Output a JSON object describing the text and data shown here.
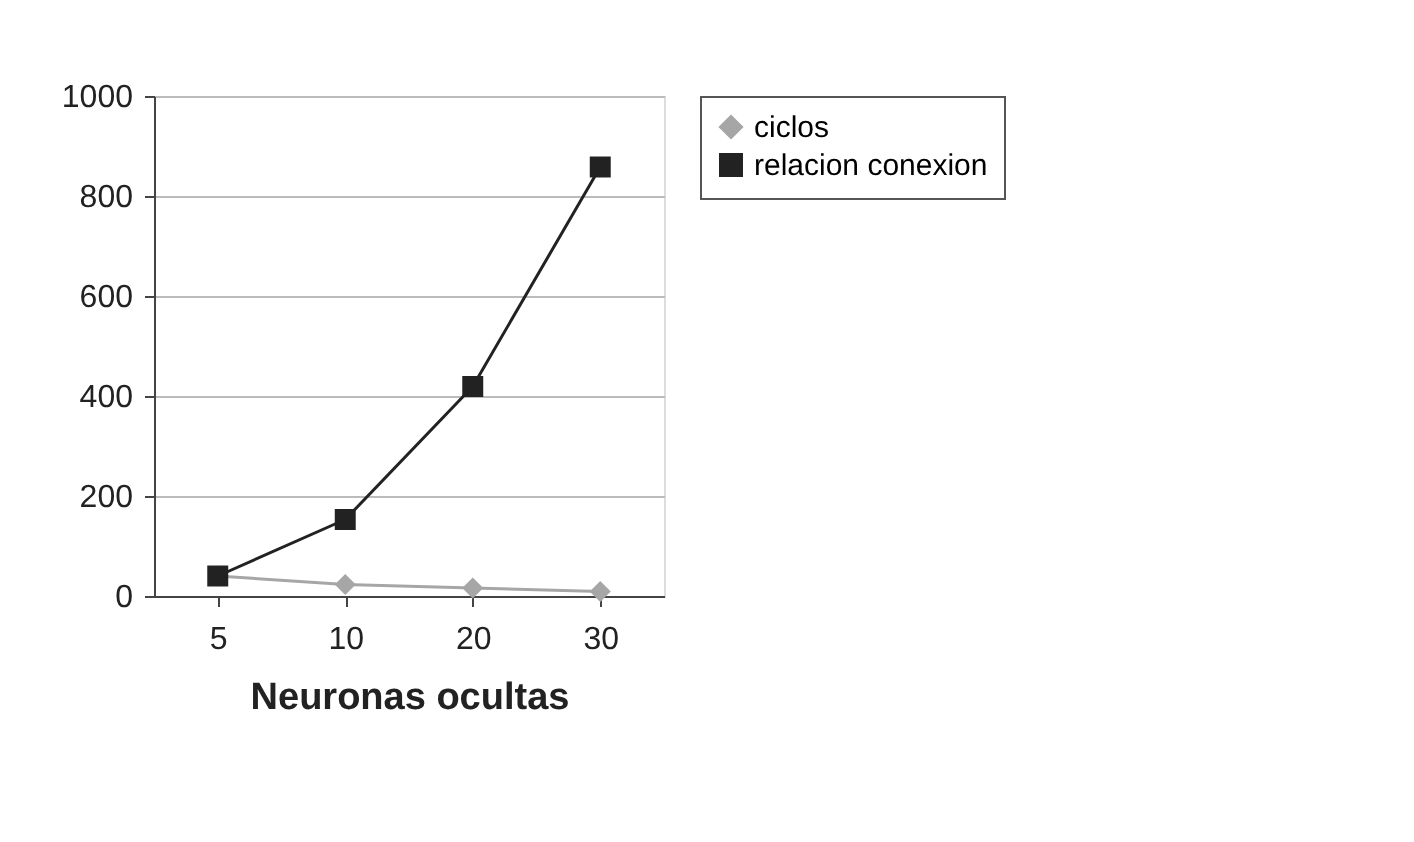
{
  "chart_data": {
    "type": "line",
    "xlabel": "Neuronas ocultas",
    "categories": [
      "5",
      "10",
      "20",
      "30"
    ],
    "series": [
      {
        "name": "ciclos",
        "color": "#a6a6a6",
        "marker": "diamond",
        "values": [
          40,
          23,
          16,
          9
        ]
      },
      {
        "name": "relacion conexion",
        "color": "#222222",
        "marker": "square",
        "values": [
          40,
          153,
          419,
          858
        ]
      }
    ],
    "ylim": [
      0,
      1000
    ],
    "yticks": [
      0,
      200,
      400,
      600,
      800,
      1000
    ],
    "grid": "y",
    "legend": "right",
    "line_style": "solid"
  }
}
